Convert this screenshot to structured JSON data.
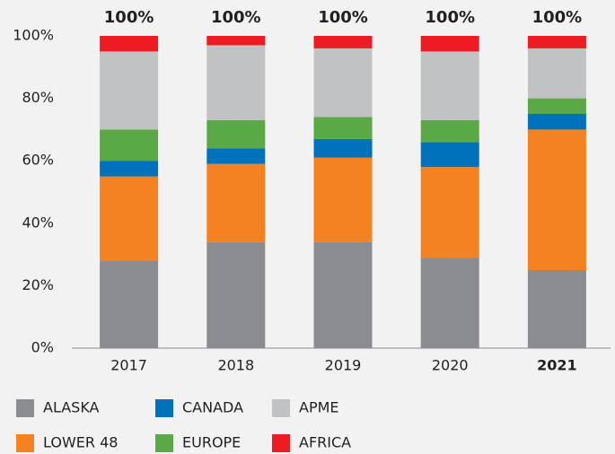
{
  "chart_data": {
    "type": "stacked_bar",
    "categories": [
      "2017",
      "2018",
      "2019",
      "2020",
      "2021"
    ],
    "highlight_category": "2021",
    "series": [
      {
        "name": "ALASKA",
        "color": "#8a8c91",
        "values": [
          28,
          34,
          34,
          29,
          25
        ]
      },
      {
        "name": "LOWER 48",
        "color": "#f58220",
        "values": [
          27,
          25,
          27,
          29,
          45
        ]
      },
      {
        "name": "CANADA",
        "color": "#0072bc",
        "values": [
          5,
          5,
          6,
          8,
          5
        ]
      },
      {
        "name": "EUROPE",
        "color": "#5aa946",
        "values": [
          10,
          9,
          7,
          7,
          5
        ]
      },
      {
        "name": "APME",
        "color": "#c1c2c4",
        "values": [
          25,
          24,
          22,
          22,
          16
        ]
      },
      {
        "name": "AFRICA",
        "color": "#ed1c24",
        "values": [
          5,
          3,
          4,
          5,
          4
        ]
      }
    ],
    "totals": [
      100,
      100,
      100,
      100,
      100
    ],
    "total_labels": [
      "100%",
      "100%",
      "100%",
      "100%",
      "100%"
    ],
    "ylim": [
      0,
      100
    ],
    "yticks": [
      {
        "value": 0,
        "label": "0%"
      },
      {
        "value": 20,
        "label": "20%"
      },
      {
        "value": 40,
        "label": "40%"
      },
      {
        "value": 60,
        "label": "60%"
      },
      {
        "value": 80,
        "label": "80%"
      },
      {
        "value": 100,
        "label": "100%"
      }
    ],
    "grid": false
  }
}
